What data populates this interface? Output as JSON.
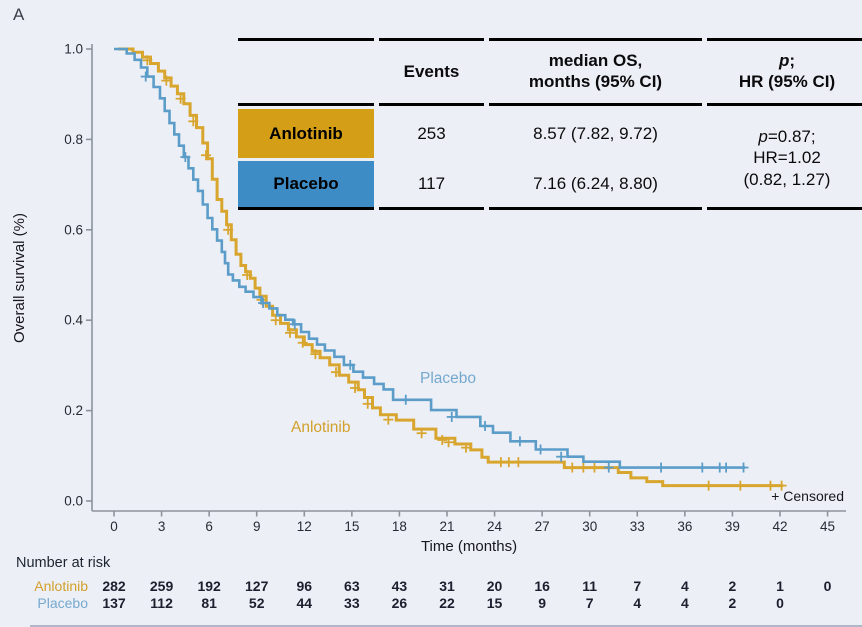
{
  "panel_label": "A",
  "colors": {
    "background": "#EDEFF6",
    "anlotinib_fill": "#D49E17",
    "placebo_fill": "#3E8CC6",
    "anlotinib_curve": "#D8A62E",
    "placebo_curve": "#5B9DC8",
    "anlotinib_label": "#D2A02C",
    "placebo_label": "#74A9CE",
    "axis": "#8D939B",
    "tick_text": "#262B33"
  },
  "summary_table": {
    "header": {
      "events": "Events",
      "median_line1": "median OS,",
      "median_line2": "months (95% CI)",
      "p_italic": "p",
      "p_rest": ";",
      "hr_line": "HR (95% CI)"
    },
    "rows": [
      {
        "label": "Anlotinib",
        "events": "253",
        "median_os": "8.57 (7.82, 9.72)"
      },
      {
        "label": "Placebo",
        "events": "117",
        "median_os": "7.16 (6.24, 8.80)"
      }
    ],
    "p_hr": {
      "p_italic": "p",
      "p_rest": "=0.87;",
      "line2": "HR=1.02",
      "line3": "(0.82, 1.27)"
    }
  },
  "chart_data": {
    "type": "line",
    "subtype": "kaplan-meier-step",
    "xlabel": "Time (months)",
    "ylabel": "Overall survival (%)",
    "xlim": [
      0,
      45
    ],
    "ylim": [
      0.0,
      1.0
    ],
    "x_ticks": [
      0,
      3,
      6,
      9,
      12,
      15,
      18,
      21,
      24,
      27,
      30,
      33,
      36,
      39,
      42,
      45
    ],
    "y_ticks": [
      "1.0",
      "0.8",
      "0.6",
      "0.4",
      "0.2",
      "0.0"
    ],
    "grid": false,
    "legend_position": "in-plot-labels",
    "censored_note": "+ Censored",
    "series": [
      {
        "name": "Anlotinib",
        "label_at": [
          13.2,
          0.148
        ],
        "points": [
          [
            0.25,
            1.0
          ],
          [
            1.2,
            0.993
          ],
          [
            1.8,
            0.982
          ],
          [
            2.3,
            0.968
          ],
          [
            2.8,
            0.951
          ],
          [
            3.2,
            0.936
          ],
          [
            3.6,
            0.918
          ],
          [
            4.0,
            0.901
          ],
          [
            4.4,
            0.879
          ],
          [
            4.8,
            0.853
          ],
          [
            5.2,
            0.826
          ],
          [
            5.6,
            0.792
          ],
          [
            5.9,
            0.757
          ],
          [
            6.2,
            0.712
          ],
          [
            6.5,
            0.667
          ],
          [
            6.8,
            0.641
          ],
          [
            7.1,
            0.611
          ],
          [
            7.4,
            0.578
          ],
          [
            7.7,
            0.546
          ],
          [
            8.0,
            0.521
          ],
          [
            8.3,
            0.507
          ],
          [
            8.6,
            0.493
          ],
          [
            8.9,
            0.471
          ],
          [
            9.2,
            0.453
          ],
          [
            9.6,
            0.431
          ],
          [
            10.0,
            0.411
          ],
          [
            10.5,
            0.393
          ],
          [
            11.0,
            0.379
          ],
          [
            11.5,
            0.363
          ],
          [
            12.0,
            0.346
          ],
          [
            12.5,
            0.331
          ],
          [
            13.0,
            0.317
          ],
          [
            13.6,
            0.301
          ],
          [
            14.2,
            0.278
          ],
          [
            14.8,
            0.263
          ],
          [
            15.4,
            0.246
          ],
          [
            15.8,
            0.229
          ],
          [
            16.3,
            0.206
          ],
          [
            16.8,
            0.191
          ],
          [
            17.8,
            0.179
          ],
          [
            18.9,
            0.159
          ],
          [
            20.3,
            0.139
          ],
          [
            21.5,
            0.126
          ],
          [
            22.5,
            0.113
          ],
          [
            23.2,
            0.097
          ],
          [
            23.6,
            0.086
          ],
          [
            28.4,
            0.074
          ],
          [
            31.8,
            0.063
          ],
          [
            32.6,
            0.051
          ],
          [
            33.6,
            0.043
          ],
          [
            34.6,
            0.034
          ],
          [
            42.2,
            0.034
          ]
        ],
        "censors": [
          [
            2.1,
            0.975
          ],
          [
            3.3,
            0.93
          ],
          [
            4.2,
            0.89
          ],
          [
            5.0,
            0.84
          ],
          [
            5.8,
            0.765
          ],
          [
            7.2,
            0.6
          ],
          [
            8.4,
            0.5
          ],
          [
            9.3,
            0.445
          ],
          [
            10.2,
            0.4
          ],
          [
            11.1,
            0.372
          ],
          [
            11.9,
            0.35
          ],
          [
            12.7,
            0.325
          ],
          [
            14.0,
            0.285
          ],
          [
            15.2,
            0.25
          ],
          [
            16.0,
            0.215
          ],
          [
            17.3,
            0.18
          ],
          [
            19.4,
            0.15
          ],
          [
            20.7,
            0.135
          ],
          [
            21.1,
            0.13
          ],
          [
            22.2,
            0.118
          ],
          [
            24.4,
            0.086
          ],
          [
            24.9,
            0.086
          ],
          [
            25.5,
            0.086
          ],
          [
            28.9,
            0.074
          ],
          [
            29.6,
            0.074
          ],
          [
            30.3,
            0.074
          ],
          [
            37.5,
            0.034
          ],
          [
            39.5,
            0.034
          ],
          [
            41.4,
            0.034
          ],
          [
            42.1,
            0.034
          ]
        ]
      },
      {
        "name": "Placebo",
        "label_at": [
          21.3,
          0.25
        ],
        "points": [
          [
            0.0,
            1.0
          ],
          [
            0.8,
            0.99
          ],
          [
            1.3,
            0.976
          ],
          [
            1.7,
            0.959
          ],
          [
            2.1,
            0.939
          ],
          [
            2.5,
            0.916
          ],
          [
            2.9,
            0.891
          ],
          [
            3.2,
            0.863
          ],
          [
            3.5,
            0.836
          ],
          [
            3.8,
            0.811
          ],
          [
            4.1,
            0.786
          ],
          [
            4.4,
            0.761
          ],
          [
            4.7,
            0.736
          ],
          [
            5.0,
            0.711
          ],
          [
            5.3,
            0.686
          ],
          [
            5.6,
            0.656
          ],
          [
            5.9,
            0.626
          ],
          [
            6.2,
            0.601
          ],
          [
            6.5,
            0.576
          ],
          [
            6.8,
            0.551
          ],
          [
            7.0,
            0.526
          ],
          [
            7.2,
            0.501
          ],
          [
            7.5,
            0.488
          ],
          [
            7.9,
            0.474
          ],
          [
            8.3,
            0.463
          ],
          [
            8.8,
            0.451
          ],
          [
            9.3,
            0.438
          ],
          [
            9.8,
            0.426
          ],
          [
            10.3,
            0.411
          ],
          [
            10.8,
            0.401
          ],
          [
            11.3,
            0.391
          ],
          [
            11.8,
            0.374
          ],
          [
            12.3,
            0.359
          ],
          [
            12.8,
            0.346
          ],
          [
            13.3,
            0.333
          ],
          [
            13.9,
            0.319
          ],
          [
            14.5,
            0.301
          ],
          [
            15.1,
            0.286
          ],
          [
            15.7,
            0.273
          ],
          [
            16.4,
            0.259
          ],
          [
            17.0,
            0.247
          ],
          [
            17.6,
            0.224
          ],
          [
            20.0,
            0.201
          ],
          [
            21.6,
            0.186
          ],
          [
            23.1,
            0.166
          ],
          [
            23.9,
            0.151
          ],
          [
            25.0,
            0.132
          ],
          [
            26.6,
            0.114
          ],
          [
            28.6,
            0.098
          ],
          [
            29.6,
            0.087
          ],
          [
            31.9,
            0.074
          ],
          [
            39.8,
            0.074
          ]
        ],
        "censors": [
          [
            2.0,
            0.939
          ],
          [
            4.5,
            0.761
          ],
          [
            9.4,
            0.438
          ],
          [
            11.4,
            0.391
          ],
          [
            14.9,
            0.301
          ],
          [
            18.4,
            0.224
          ],
          [
            21.3,
            0.186
          ],
          [
            23.4,
            0.166
          ],
          [
            25.6,
            0.132
          ],
          [
            26.9,
            0.114
          ],
          [
            28.2,
            0.098
          ],
          [
            31.2,
            0.074
          ],
          [
            34.5,
            0.074
          ],
          [
            37.1,
            0.074
          ],
          [
            38.2,
            0.074
          ],
          [
            38.6,
            0.074
          ],
          [
            39.7,
            0.074
          ]
        ]
      }
    ]
  },
  "risk_table": {
    "title": "Number at risk",
    "rows": [
      {
        "label": "Anlotinib",
        "values": [
          "282",
          "259",
          "192",
          "127",
          "96",
          "63",
          "43",
          "31",
          "20",
          "16",
          "11",
          "7",
          "4",
          "2",
          "1",
          "0"
        ]
      },
      {
        "label": "Placebo",
        "values": [
          "137",
          "112",
          "81",
          "52",
          "44",
          "33",
          "26",
          "22",
          "15",
          "9",
          "7",
          "4",
          "4",
          "2",
          "0",
          ""
        ]
      }
    ]
  }
}
